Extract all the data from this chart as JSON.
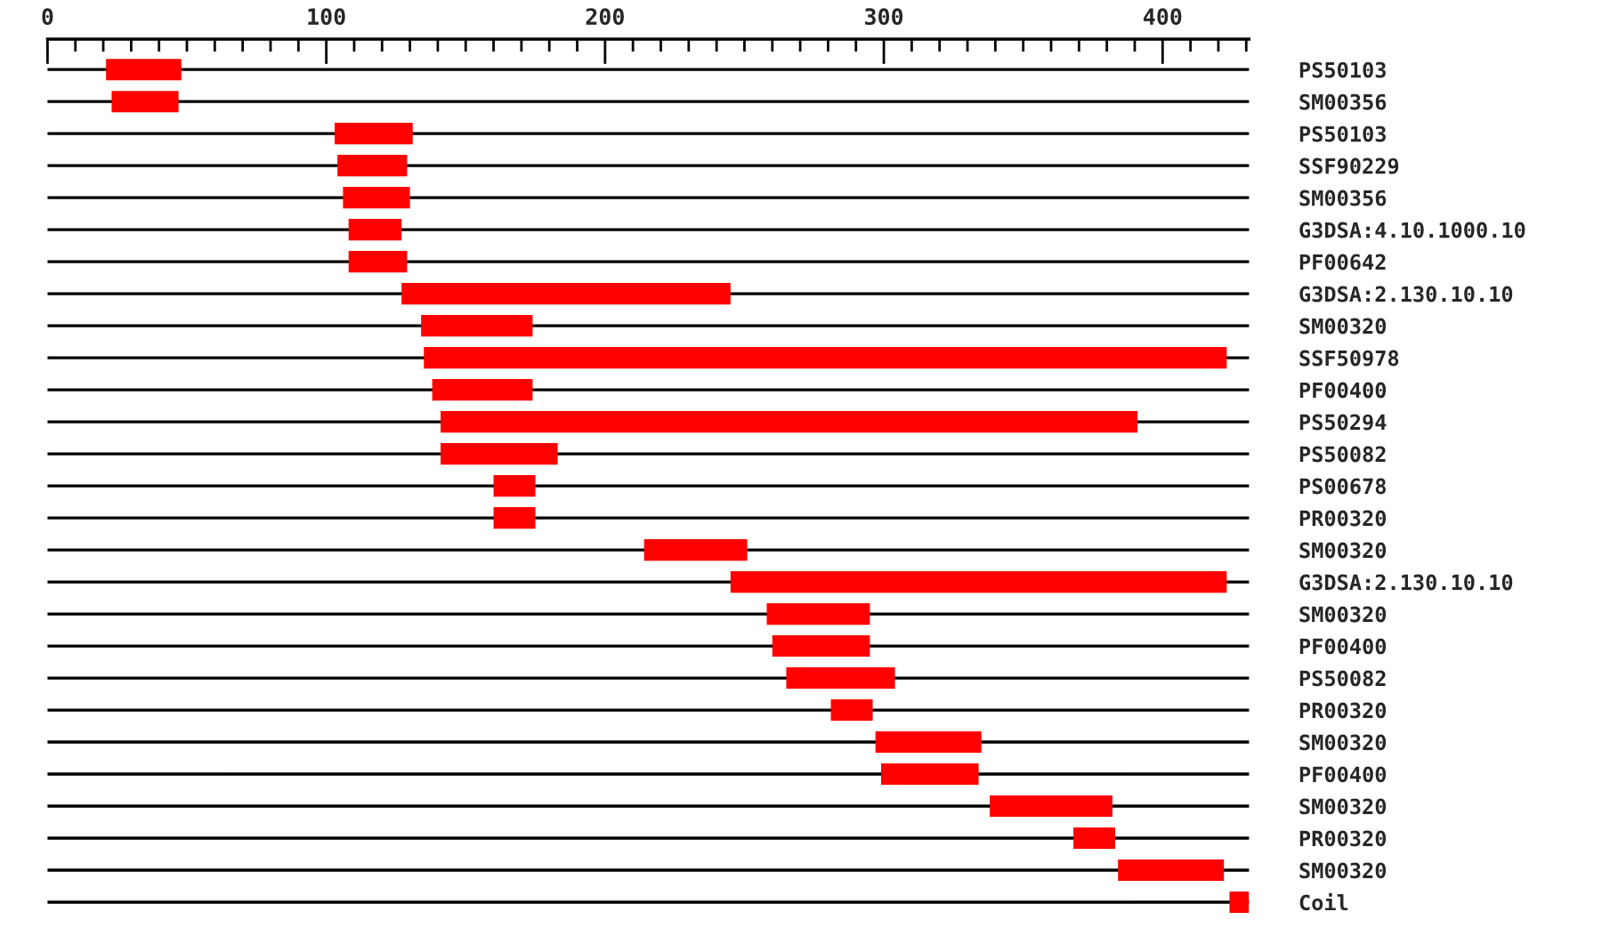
{
  "chart_data": {
    "type": "bar",
    "orientation": "horizontal",
    "categories": [
      "PS50103",
      "SM00356",
      "PS50103",
      "SSF90229",
      "SM00356",
      "G3DSA:4.10.1000.10",
      "PF00642",
      "G3DSA:2.130.10.10",
      "SM00320",
      "SSF50978",
      "PF00400",
      "PS50294",
      "PS50082",
      "PS00678",
      "PR00320",
      "SM00320",
      "G3DSA:2.130.10.10",
      "SM00320",
      "PF00400",
      "PS50082",
      "PR00320",
      "SM00320",
      "PF00400",
      "SM00320",
      "PR00320",
      "SM00320",
      "Coil"
    ],
    "base": [
      21,
      23,
      103,
      104,
      106,
      108,
      108,
      127,
      134,
      135,
      138,
      141,
      141,
      160,
      160,
      214,
      245,
      258,
      260,
      265,
      281,
      297,
      299,
      338,
      368,
      384,
      424
    ],
    "values": [
      27,
      24,
      28,
      25,
      24,
      19,
      21,
      118,
      40,
      288,
      36,
      250,
      42,
      15,
      15,
      37,
      178,
      37,
      35,
      39,
      15,
      38,
      35,
      44,
      15,
      38,
      7
    ],
    "color": "#ff0000",
    "xlim": [
      0,
      431
    ],
    "xticks": [
      0,
      {
        "value": 10,
        "label": null
      },
      {
        "value": 20,
        "label": null
      },
      {
        "value": 30,
        "label": null
      },
      {
        "value": 40,
        "label": null
      },
      {
        "value": 50,
        "label": null
      },
      {
        "value": 60,
        "label": null
      },
      {
        "value": 70,
        "label": null
      },
      {
        "value": 80,
        "label": null
      },
      {
        "value": 90,
        "label": null
      },
      100,
      {
        "value": 110,
        "label": null
      },
      {
        "value": 120,
        "label": null
      },
      {
        "value": 130,
        "label": null
      },
      {
        "value": 140,
        "label": null
      },
      {
        "value": 150,
        "label": null
      },
      {
        "value": 160,
        "label": null
      },
      {
        "value": 170,
        "label": null
      },
      {
        "value": 180,
        "label": null
      },
      {
        "value": 190,
        "label": null
      },
      200,
      {
        "value": 210,
        "label": null
      },
      {
        "value": 220,
        "label": null
      },
      {
        "value": 230,
        "label": null
      },
      {
        "value": 240,
        "label": null
      },
      {
        "value": 250,
        "label": null
      },
      {
        "value": 260,
        "label": null
      },
      {
        "value": 270,
        "label": null
      },
      {
        "value": 280,
        "label": null
      },
      {
        "value": 290,
        "label": null
      },
      300,
      {
        "value": 310,
        "label": null
      },
      {
        "value": 320,
        "label": null
      },
      {
        "value": 330,
        "label": null
      },
      {
        "value": 340,
        "label": null
      },
      {
        "value": 350,
        "label": null
      },
      {
        "value": 360,
        "label": null
      },
      {
        "value": 370,
        "label": null
      },
      {
        "value": 380,
        "label": null
      },
      {
        "value": 390,
        "label": null
      },
      400,
      {
        "value": 410,
        "label": null
      },
      {
        "value": 420,
        "label": null
      },
      {
        "value": 430,
        "label": null
      }
    ],
    "grid": "y"
  }
}
